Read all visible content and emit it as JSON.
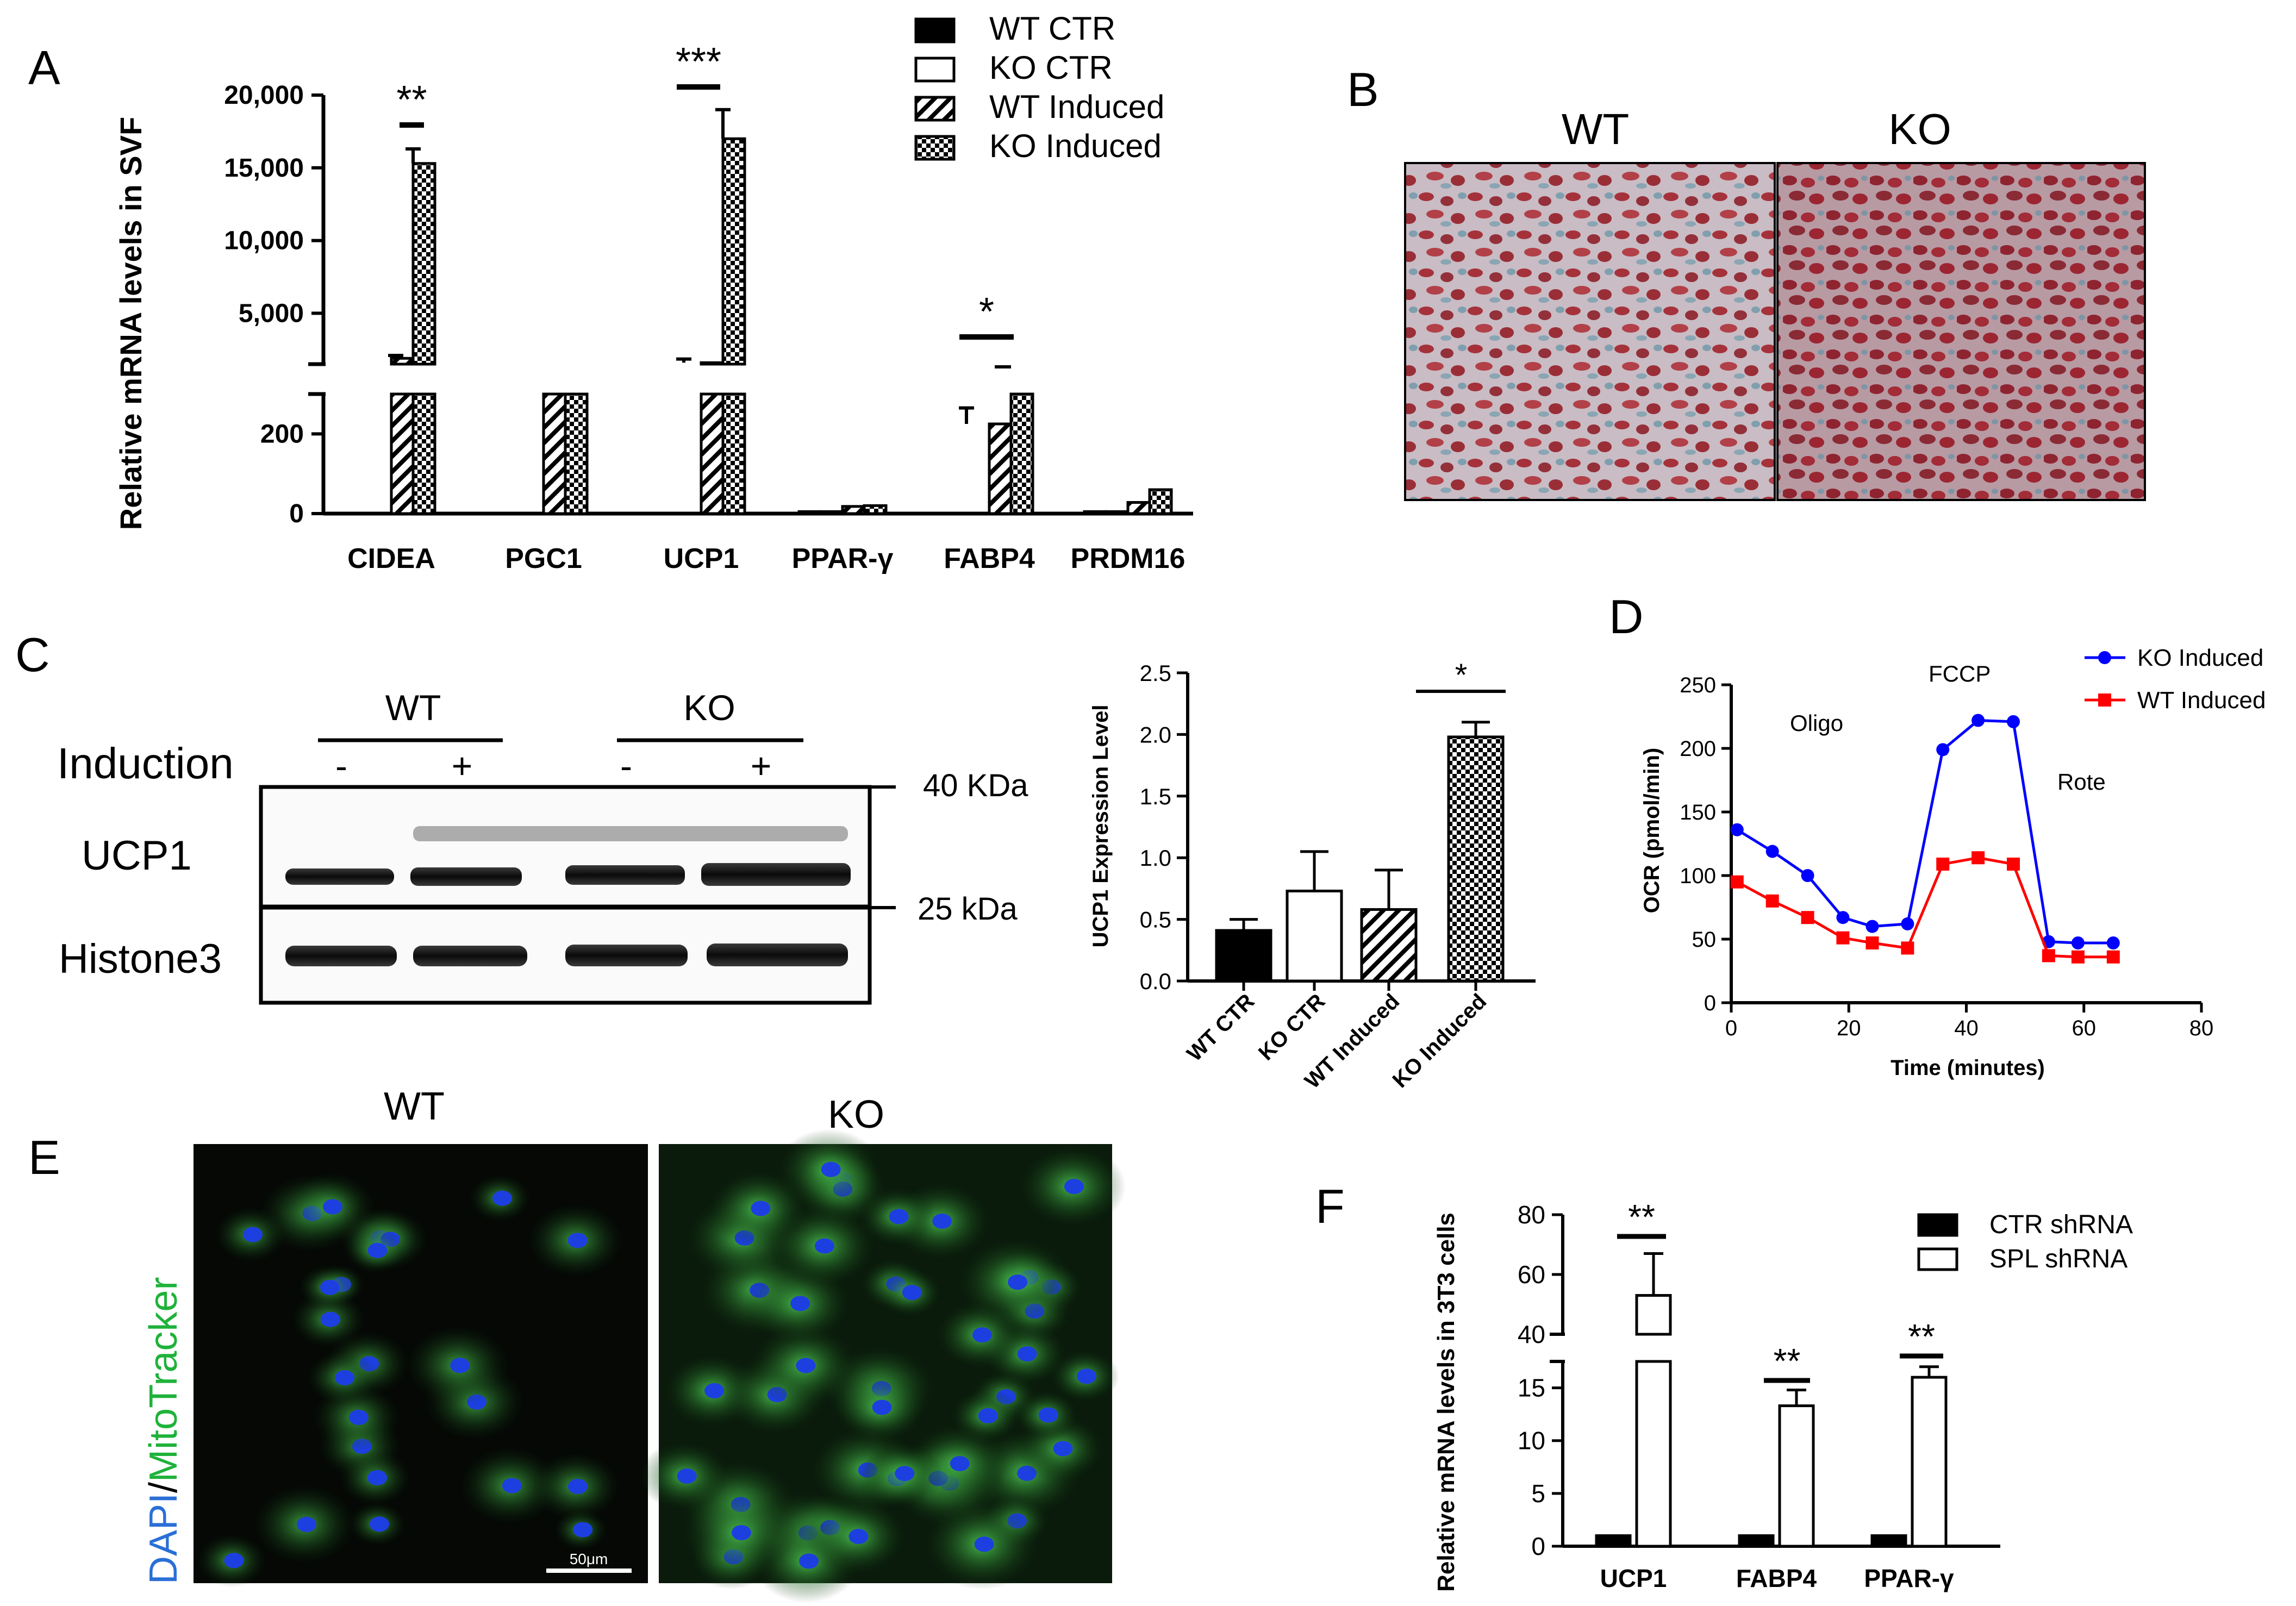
{
  "panel_letters": [
    "A",
    "B",
    "C",
    "D",
    "E",
    "F"
  ],
  "panel_b": {
    "labels": [
      "WT",
      "KO"
    ]
  },
  "panel_c_blot": {
    "groups": [
      "WT",
      "KO"
    ],
    "induction_label": "Induction",
    "signs": [
      "-",
      "+",
      "-",
      "+"
    ],
    "rows": [
      "UCP1",
      "Histone3"
    ],
    "markers": [
      "40 KDa",
      "25 kDa"
    ]
  },
  "panel_e": {
    "labels": [
      "WT",
      "KO"
    ],
    "stain_left": "DAPI",
    "stain_sep": "/",
    "stain_right": "MitoTracker",
    "scale": "50μm"
  },
  "colors": {
    "ko_induced": "#0000ff",
    "wt_induced": "#ff0000",
    "stain_dapi": "#2a6fd6",
    "stain_mito": "#1fb23a"
  },
  "chart_data": [
    {
      "panel": "A",
      "type": "bar",
      "ylabel": "Relative mRNA levels in SVF",
      "categories": [
        "CIDEA",
        "PGC1",
        "UCP1",
        "PPAR-γ",
        "FABP4",
        "PRDM16"
      ],
      "series": [
        {
          "name": "WT CTR",
          "values": [
            0,
            0,
            0,
            5,
            0,
            5
          ]
        },
        {
          "name": "KO CTR",
          "values": [
            0,
            0,
            0,
            5,
            0,
            5
          ]
        },
        {
          "name": "WT Induced",
          "values": [
            1900,
            300,
            1600,
            18,
            225,
            28
          ]
        },
        {
          "name": "KO Induced",
          "values": [
            15300,
            350,
            17000,
            20,
            330,
            60
          ]
        }
      ],
      "yticks_lower": [
        "0",
        "200"
      ],
      "yticks_upper": [
        "5,000",
        "10,000",
        "15,000",
        "20,000"
      ],
      "broken_axis": [
        300,
        1500
      ],
      "significance": [
        "**",
        "***",
        "*"
      ]
    },
    {
      "panel": "C",
      "type": "bar",
      "ylabel": "UCP1 Expression Level",
      "categories": [
        "WT CTR",
        "KO CTR",
        "WT Induced",
        "KO Induced"
      ],
      "values": [
        0.41,
        0.73,
        0.58,
        1.98
      ],
      "errors": [
        0.09,
        0.32,
        0.32,
        0.12
      ],
      "yticks": [
        "0.0",
        "0.5",
        "1.0",
        "1.5",
        "2.0",
        "2.5"
      ],
      "ylim": [
        0,
        2.5
      ],
      "significance": [
        "*"
      ]
    },
    {
      "panel": "D",
      "type": "line",
      "xlabel": "Time (minutes)",
      "ylabel": "OCR (pmol/min)",
      "xlim": [
        0,
        80
      ],
      "ylim": [
        0,
        250
      ],
      "xticks": [
        "0",
        "20",
        "40",
        "60",
        "80"
      ],
      "yticks": [
        "0",
        "50",
        "100",
        "150",
        "200",
        "250"
      ],
      "annotations": [
        "Oligo",
        "FCCP",
        "Rote"
      ],
      "series": [
        {
          "name": "KO Induced",
          "x": [
            1,
            7,
            13,
            19,
            24,
            30,
            36,
            42,
            48,
            54,
            59,
            65
          ],
          "y": [
            136,
            119,
            100,
            67,
            60,
            62,
            199,
            222,
            221,
            48,
            47,
            47
          ]
        },
        {
          "name": "WT Induced",
          "x": [
            1,
            7,
            13,
            19,
            24,
            30,
            36,
            42,
            48,
            54,
            59,
            65
          ],
          "y": [
            95,
            80,
            67,
            51,
            47,
            43,
            109,
            114,
            109,
            37,
            36,
            36
          ]
        }
      ]
    },
    {
      "panel": "F",
      "type": "bar",
      "ylabel": "Relative mRNA levels in 3T3 cells",
      "categories": [
        "UCP1",
        "FABP4",
        "PPAR-γ"
      ],
      "series": [
        {
          "name": "CTR shRNA",
          "values": [
            1,
            1,
            1
          ]
        },
        {
          "name": "SPL shRNA",
          "values": [
            53,
            13.3,
            16
          ]
        }
      ],
      "yticks_lower": [
        "0",
        "5",
        "10",
        "15"
      ],
      "yticks_upper": [
        "40",
        "60",
        "80"
      ],
      "broken_axis": [
        17.5,
        40
      ],
      "significance": [
        "**",
        "**",
        "**"
      ]
    }
  ]
}
